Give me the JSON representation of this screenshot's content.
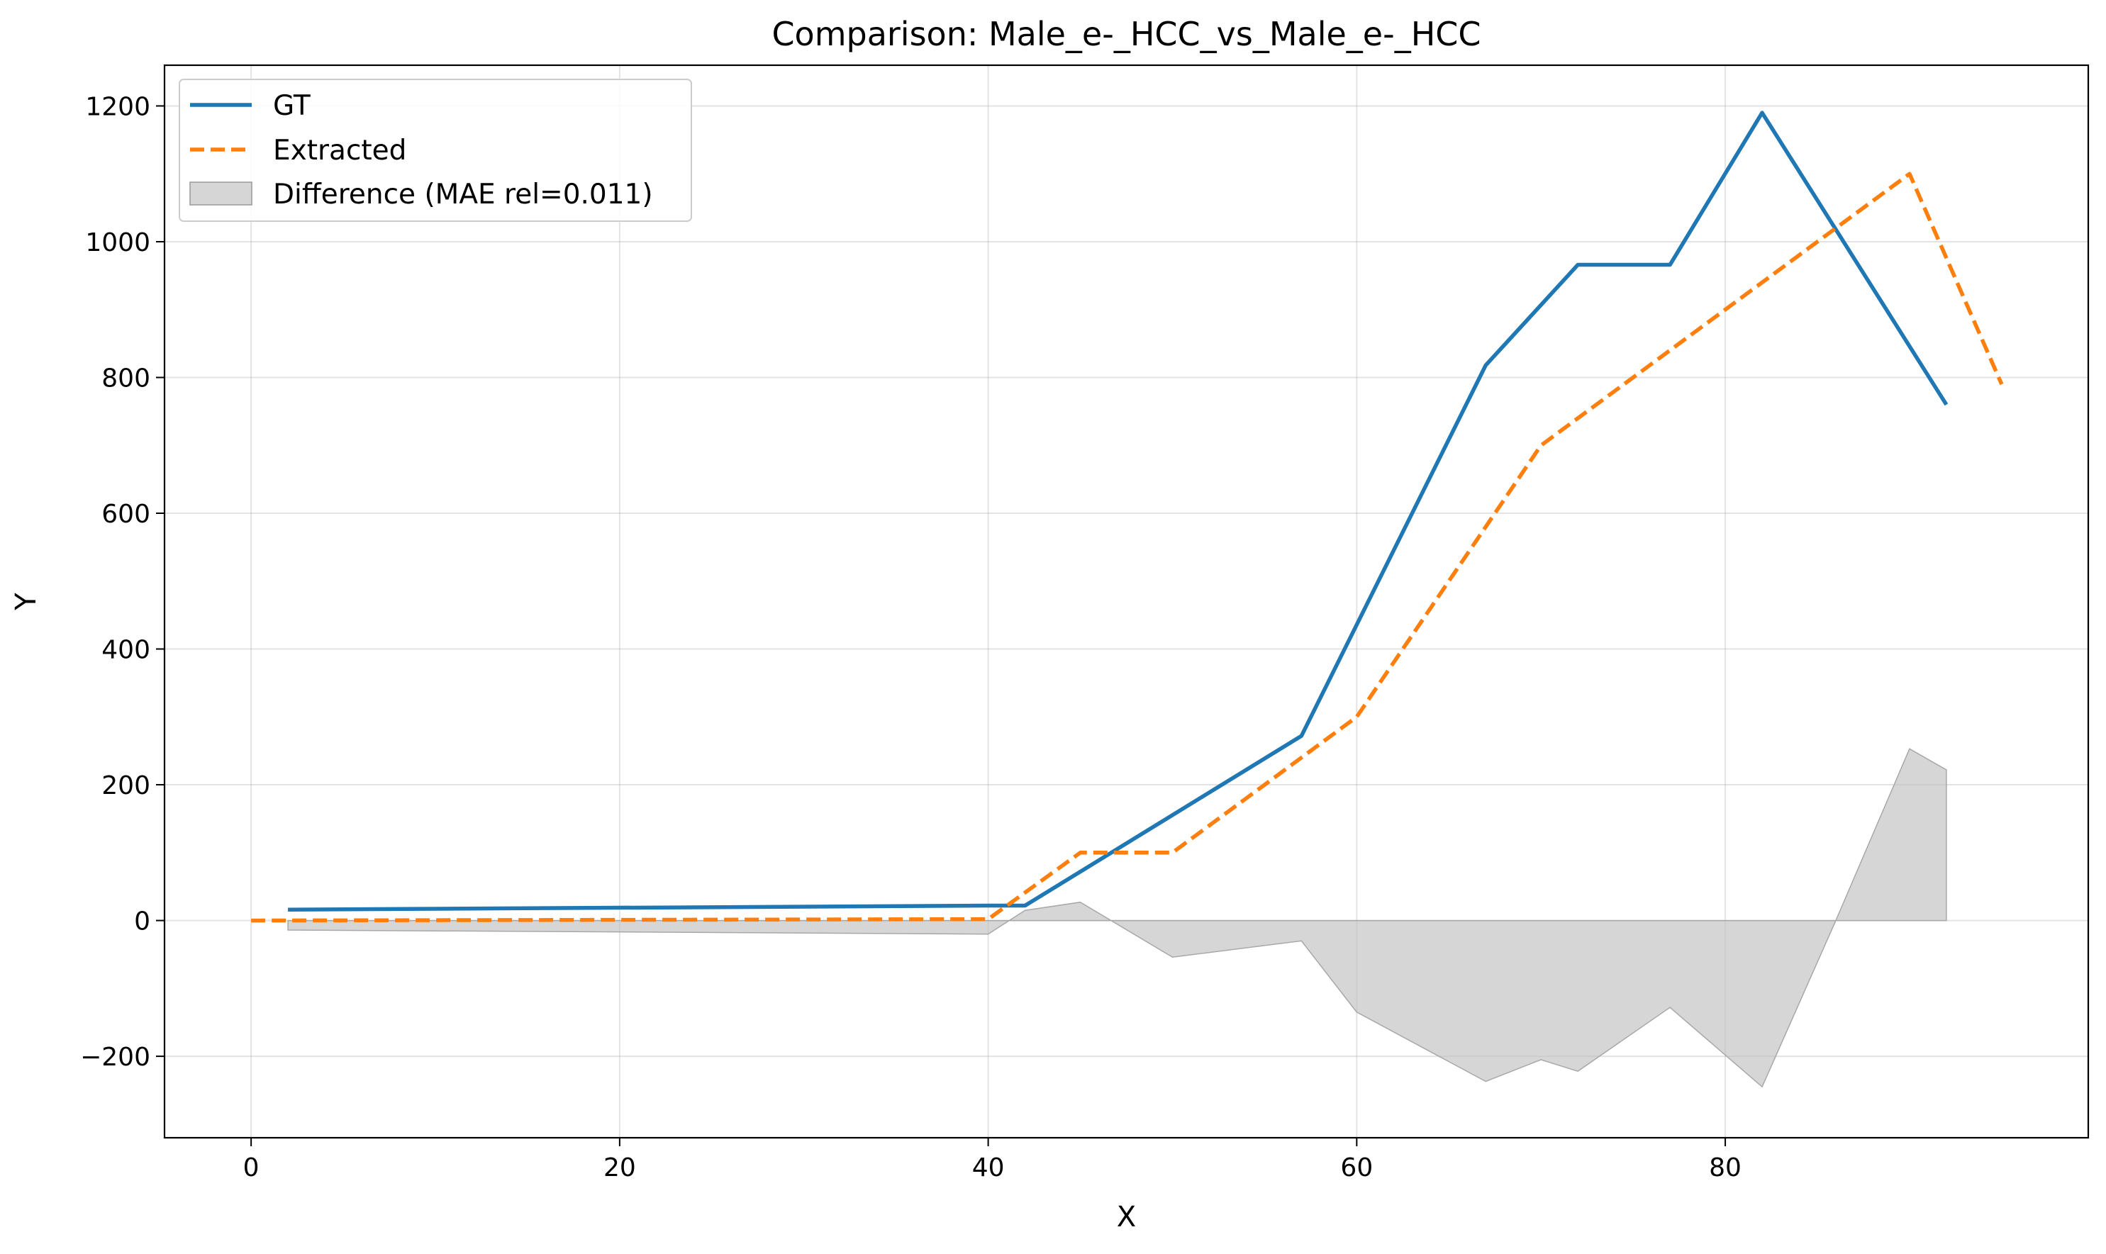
{
  "chart_data": {
    "type": "line",
    "title": "Comparison: Male_e-_HCC_vs_Male_e-_HCC",
    "xlabel": "X",
    "ylabel": "Y",
    "xlim": [
      -4.7,
      99.7
    ],
    "ylim": [
      -320,
      1260
    ],
    "xticks": [
      0,
      20,
      40,
      60,
      80
    ],
    "xtick_labels": [
      "0",
      "20",
      "40",
      "60",
      "80"
    ],
    "yticks": [
      -200,
      0,
      200,
      400,
      600,
      800,
      1000,
      1200
    ],
    "ytick_labels": [
      "−200",
      "0",
      "200",
      "400",
      "600",
      "800",
      "1000",
      "1200"
    ],
    "grid": true,
    "legend_position": "upper-left",
    "series": [
      {
        "name": "GT",
        "style": "solid",
        "color": "#1f77b4",
        "x": [
          2,
          40,
          42,
          57,
          67,
          72,
          77,
          82,
          92
        ],
        "y": [
          16,
          22,
          22,
          272,
          818,
          966,
          966,
          1190,
          760
        ]
      },
      {
        "name": "Extracted",
        "style": "dashed",
        "color": "#ff7f0e",
        "x": [
          0,
          40,
          45,
          50,
          60,
          70,
          80,
          85,
          90,
          95
        ],
        "y": [
          0,
          2,
          100,
          100,
          300,
          700,
          900,
          1000,
          1100,
          790
        ]
      }
    ],
    "difference": {
      "name": "Difference (MAE rel=0.011)",
      "color": "#c0c0c0",
      "x": [
        2,
        40,
        42,
        45,
        50,
        57,
        60,
        67,
        70,
        72,
        77,
        82,
        86,
        90,
        92
      ],
      "y": [
        -14,
        -20,
        15,
        27,
        -54,
        -30,
        -135,
        -237,
        -205,
        -222,
        -128,
        -245,
        0,
        253,
        222
      ]
    }
  }
}
